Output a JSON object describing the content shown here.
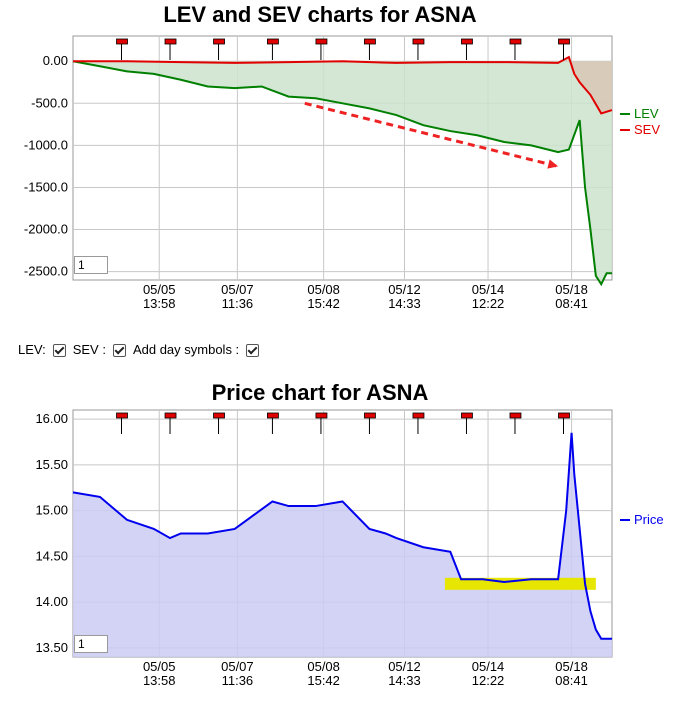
{
  "chart_data": [
    {
      "type": "line",
      "title": "LEV and SEV charts for ASNA",
      "x_tick_labels": [
        [
          "05/05",
          "13:58"
        ],
        [
          "05/07",
          "11:36"
        ],
        [
          "05/08",
          "15:42"
        ],
        [
          "05/12",
          "14:33"
        ],
        [
          "05/14",
          "12:22"
        ],
        [
          "05/18",
          "08:41"
        ]
      ],
      "y_ticks": [
        "0.00",
        "-500.0",
        "-1000.0",
        "-1500.0",
        "-2000.0",
        "-2500.0"
      ],
      "ylim": [
        -2600,
        300
      ],
      "series": [
        {
          "name": "LEV",
          "color": "#008000",
          "fill": "#cde3cd",
          "x": [
            0,
            0.05,
            0.1,
            0.15,
            0.2,
            0.25,
            0.3,
            0.35,
            0.4,
            0.45,
            0.5,
            0.55,
            0.6,
            0.65,
            0.7,
            0.75,
            0.8,
            0.85,
            0.9,
            0.92,
            0.94,
            0.95,
            0.96,
            0.97,
            0.98,
            0.99,
            1.0
          ],
          "values": [
            0,
            -60,
            -120,
            -150,
            -220,
            -300,
            -320,
            -300,
            -420,
            -440,
            -500,
            -560,
            -640,
            -760,
            -830,
            -880,
            -960,
            -1000,
            -1080,
            -1050,
            -700,
            -1500,
            -2000,
            -2550,
            -2650,
            -2520,
            -2520
          ]
        },
        {
          "name": "SEV",
          "color": "#e00000",
          "fill": "#d9c6b4",
          "x": [
            0,
            0.1,
            0.2,
            0.3,
            0.4,
            0.5,
            0.6,
            0.7,
            0.8,
            0.9,
            0.92,
            0.93,
            0.94,
            0.96,
            0.98,
            1.0
          ],
          "values": [
            0,
            0,
            -10,
            -20,
            -10,
            0,
            -20,
            -10,
            -10,
            -20,
            50,
            -150,
            -250,
            -400,
            -620,
            -580
          ]
        }
      ],
      "trend_arrow": {
        "from": [
          0.43,
          -500
        ],
        "to": [
          0.9,
          -1250
        ],
        "color": "#ee2222"
      },
      "day_markers": [
        0.09,
        0.18,
        0.27,
        0.37,
        0.46,
        0.55,
        0.64,
        0.73,
        0.82,
        0.91
      ],
      "zoom_value": "1",
      "legend_position": "right"
    },
    {
      "type": "line",
      "title": "Price chart for ASNA",
      "x_tick_labels": [
        [
          "05/05",
          "13:58"
        ],
        [
          "05/07",
          "11:36"
        ],
        [
          "05/08",
          "15:42"
        ],
        [
          "05/12",
          "14:33"
        ],
        [
          "05/14",
          "12:22"
        ],
        [
          "05/18",
          "08:41"
        ]
      ],
      "y_ticks": [
        "16.00",
        "15.50",
        "15.00",
        "14.50",
        "14.00",
        "13.50"
      ],
      "ylim": [
        13.4,
        16.1
      ],
      "series": [
        {
          "name": "Price",
          "color": "#0000ee",
          "fill": "#cbcbf3",
          "x": [
            0,
            0.05,
            0.08,
            0.1,
            0.15,
            0.18,
            0.2,
            0.25,
            0.3,
            0.37,
            0.4,
            0.45,
            0.5,
            0.55,
            0.58,
            0.6,
            0.65,
            0.7,
            0.72,
            0.74,
            0.76,
            0.8,
            0.85,
            0.9,
            0.915,
            0.925,
            0.93,
            0.94,
            0.95,
            0.96,
            0.97,
            0.98,
            1.0
          ],
          "values": [
            15.2,
            15.15,
            15.0,
            14.9,
            14.8,
            14.7,
            14.75,
            14.75,
            14.8,
            15.1,
            15.05,
            15.05,
            15.1,
            14.8,
            14.75,
            14.7,
            14.6,
            14.55,
            14.25,
            14.25,
            14.25,
            14.22,
            14.25,
            14.25,
            15.0,
            15.85,
            15.4,
            14.8,
            14.2,
            13.9,
            13.7,
            13.6,
            13.6
          ]
        }
      ],
      "highlight_band": {
        "x": [
          0.69,
          0.97
        ],
        "y": 14.2,
        "color": "#e6e600"
      },
      "day_markers": [
        0.09,
        0.18,
        0.27,
        0.37,
        0.46,
        0.55,
        0.64,
        0.73,
        0.82,
        0.91
      ],
      "zoom_value": "1",
      "legend_position": "right"
    }
  ],
  "options": {
    "lev_label": "LEV:",
    "sev_label": "SEV :",
    "day_symbols_label": "Add day symbols :"
  }
}
